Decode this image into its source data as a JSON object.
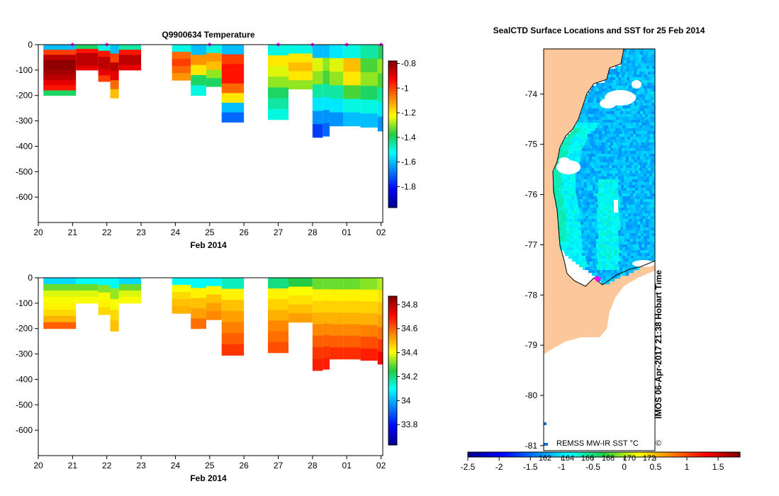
{
  "chart_data": [
    {
      "type": "heatmap",
      "title": "Q9900634  Temperature",
      "xlabel": "Feb 2014",
      "ylabel": "",
      "x_tick_labels": [
        "20",
        "21",
        "22",
        "23",
        "24",
        "25",
        "26",
        "27",
        "28",
        "01",
        "02"
      ],
      "x_ticks_days": [
        0,
        1,
        2,
        3,
        4,
        5,
        6,
        7,
        8,
        9,
        10
      ],
      "xlim_days": [
        0,
        10.05
      ],
      "y_ticks": [
        0,
        -100,
        -200,
        -300,
        -400,
        -500,
        -600
      ],
      "ylim": [
        -700,
        0
      ],
      "colorbar": {
        "ticks": [
          -0.8,
          -1,
          -1.2,
          -1.4,
          -1.6,
          -1.8
        ],
        "range": [
          -1.97,
          -0.78
        ]
      },
      "profile_marker_days": [
        1.0,
        2.0,
        5.0,
        7.0,
        8.0,
        9.0,
        10.0
      ],
      "profiles": [
        {
          "start": 0.15,
          "end": 1.1,
          "depth": 200,
          "values": [
            -1.6,
            -1.0,
            -0.85,
            -0.8,
            -0.8,
            -0.82,
            -0.85,
            -0.9,
            -0.95,
            -1.4
          ]
        },
        {
          "start": 1.1,
          "end": 1.75,
          "depth": 100,
          "values": [
            -1.4,
            -0.95,
            -0.85,
            -0.85,
            -0.85,
            -0.9
          ]
        },
        {
          "start": 1.75,
          "end": 2.1,
          "depth": 145,
          "values": [
            -1.5,
            -0.95,
            -0.85,
            -0.85,
            -0.9,
            -1.0
          ]
        },
        {
          "start": 2.1,
          "end": 2.35,
          "depth": 210,
          "values": [
            -1.6,
            -1.0,
            -0.85,
            -0.9,
            -1.05,
            -1.15
          ]
        },
        {
          "start": 2.35,
          "end": 3.0,
          "depth": 100,
          "values": [
            -1.45,
            -0.95,
            -0.85,
            -0.85,
            -0.9
          ]
        },
        {
          "start": 3.9,
          "end": 4.45,
          "depth": 140,
          "values": [
            -1.5,
            -1.05,
            -1.0,
            -1.05,
            -1.1
          ]
        },
        {
          "start": 4.45,
          "end": 4.9,
          "depth": 200,
          "values": [
            -1.6,
            -1.1,
            -1.2,
            -1.4,
            -1.5
          ]
        },
        {
          "start": 4.9,
          "end": 5.35,
          "depth": 165,
          "values": [
            -1.5,
            -1.1,
            -1.15,
            -1.3,
            -1.4
          ]
        },
        {
          "start": 5.35,
          "end": 6.0,
          "depth": 305,
          "values": [
            -1.6,
            -1.0,
            -0.95,
            -0.95,
            -1.05,
            -1.2,
            -1.6,
            -1.7
          ]
        },
        {
          "start": 6.7,
          "end": 7.3,
          "depth": 295,
          "values": [
            -1.5,
            -1.2,
            -1.25,
            -1.3,
            -1.4,
            -1.45,
            -1.5
          ]
        },
        {
          "start": 7.3,
          "end": 8.0,
          "depth": 175,
          "values": [
            -1.5,
            -1.2,
            -1.15,
            -1.2,
            -1.3
          ]
        },
        {
          "start": 8.0,
          "end": 8.3,
          "depth": 365,
          "values": [
            -1.6,
            -1.25,
            -1.3,
            -1.45,
            -1.55,
            -1.65,
            -1.75
          ]
        },
        {
          "start": 8.3,
          "end": 8.5,
          "depth": 360,
          "values": [
            -1.6,
            -1.3,
            -1.35,
            -1.45,
            -1.55,
            -1.65,
            -1.7
          ]
        },
        {
          "start": 8.5,
          "end": 8.9,
          "depth": 320,
          "values": [
            -1.55,
            -1.25,
            -1.3,
            -1.45,
            -1.55,
            -1.65
          ]
        },
        {
          "start": 8.9,
          "end": 9.4,
          "depth": 320,
          "values": [
            -1.5,
            -1.15,
            -1.2,
            -1.35,
            -1.5,
            -1.6
          ]
        },
        {
          "start": 9.4,
          "end": 9.9,
          "depth": 325,
          "values": [
            -1.45,
            -1.35,
            -1.3,
            -1.4,
            -1.5,
            -1.6
          ]
        },
        {
          "start": 9.9,
          "end": 10.05,
          "depth": 340,
          "values": [
            -1.4,
            -1.3,
            -1.35,
            -1.45,
            -1.55,
            -1.65
          ]
        }
      ]
    },
    {
      "type": "heatmap",
      "title": "",
      "xlabel": "Feb 2014",
      "ylabel": "",
      "x_tick_labels": [
        "20",
        "21",
        "22",
        "23",
        "24",
        "25",
        "26",
        "27",
        "28",
        "01",
        "02"
      ],
      "x_ticks_days": [
        0,
        1,
        2,
        3,
        4,
        5,
        6,
        7,
        8,
        9,
        10
      ],
      "xlim_days": [
        0,
        10.05
      ],
      "y_ticks": [
        0,
        -100,
        -200,
        -300,
        -400,
        -500,
        -600
      ],
      "ylim": [
        -700,
        0
      ],
      "colorbar": {
        "ticks": [
          34.8,
          34.6,
          34.4,
          34.2,
          34,
          33.8
        ],
        "range": [
          33.63,
          34.87
        ]
      },
      "profiles": [
        {
          "start": 0.15,
          "end": 1.1,
          "depth": 200,
          "values": [
            34.05,
            34.3,
            34.38,
            34.4,
            34.42,
            34.45,
            34.5,
            34.6
          ]
        },
        {
          "start": 1.1,
          "end": 1.75,
          "depth": 100,
          "values": [
            34.1,
            34.3,
            34.38,
            34.4
          ]
        },
        {
          "start": 1.75,
          "end": 2.1,
          "depth": 145,
          "values": [
            34.1,
            34.32,
            34.4,
            34.42,
            34.45
          ]
        },
        {
          "start": 2.1,
          "end": 2.35,
          "depth": 210,
          "values": [
            34.1,
            34.33,
            34.4,
            34.45,
            34.48
          ]
        },
        {
          "start": 2.35,
          "end": 3.0,
          "depth": 100,
          "values": [
            34.05,
            34.3,
            34.38,
            34.4
          ]
        },
        {
          "start": 3.9,
          "end": 4.45,
          "depth": 140,
          "values": [
            34.1,
            34.4,
            34.45,
            34.48,
            34.5
          ]
        },
        {
          "start": 4.45,
          "end": 4.9,
          "depth": 200,
          "values": [
            34.1,
            34.42,
            34.48,
            34.52,
            34.58
          ]
        },
        {
          "start": 4.9,
          "end": 5.35,
          "depth": 165,
          "values": [
            34.1,
            34.42,
            34.48,
            34.52,
            34.55
          ]
        },
        {
          "start": 5.35,
          "end": 6.0,
          "depth": 305,
          "values": [
            34.15,
            34.42,
            34.48,
            34.52,
            34.56,
            34.6,
            34.65
          ]
        },
        {
          "start": 6.7,
          "end": 7.3,
          "depth": 295,
          "values": [
            34.2,
            34.42,
            34.46,
            34.5,
            34.55,
            34.58,
            34.62
          ]
        },
        {
          "start": 7.3,
          "end": 8.0,
          "depth": 175,
          "values": [
            34.25,
            34.4,
            34.44,
            34.48,
            34.52
          ]
        },
        {
          "start": 8.0,
          "end": 8.3,
          "depth": 365,
          "values": [
            34.3,
            34.42,
            34.46,
            34.5,
            34.55,
            34.6,
            34.65,
            34.68
          ]
        },
        {
          "start": 8.3,
          "end": 8.5,
          "depth": 360,
          "values": [
            34.3,
            34.42,
            34.46,
            34.5,
            34.55,
            34.6,
            34.65,
            34.68
          ]
        },
        {
          "start": 8.5,
          "end": 8.9,
          "depth": 320,
          "values": [
            34.3,
            34.42,
            34.46,
            34.5,
            34.55,
            34.6,
            34.66
          ]
        },
        {
          "start": 8.9,
          "end": 9.4,
          "depth": 320,
          "values": [
            34.3,
            34.42,
            34.46,
            34.5,
            34.55,
            34.6,
            34.66
          ]
        },
        {
          "start": 9.4,
          "end": 9.9,
          "depth": 325,
          "values": [
            34.32,
            34.42,
            34.46,
            34.5,
            34.56,
            34.62,
            34.68
          ]
        },
        {
          "start": 9.9,
          "end": 10.05,
          "depth": 340,
          "values": [
            34.35,
            34.44,
            34.48,
            34.52,
            34.58,
            34.65,
            34.72
          ]
        }
      ]
    },
    {
      "type": "heatmap",
      "title": "SealCTD Surface Locations and SST for 25 Feb 2014",
      "xlabel": "",
      "ylabel": "",
      "y_ticks": [
        -74,
        -75,
        -76,
        -77,
        -78,
        -79,
        -80,
        -81
      ],
      "ylim": [
        -81.1,
        -73.1
      ],
      "colorbar": {
        "ticks": [
          -2.5,
          -2,
          -1.5,
          -1,
          -0.5,
          0,
          0.5,
          1,
          1.5
        ],
        "range": [
          -2.5,
          1.85
        ]
      },
      "colorbar_extra_ticks": [
        "162",
        "164",
        "166",
        "168",
        "170",
        "172"
      ],
      "map_label": "REMSS MW-IR SST °C",
      "watermark": "IMOS 06-Apr-2017 21:38 Hobart Time",
      "copyright": "©",
      "sst_range": [
        -1.4,
        -0.6
      ]
    }
  ]
}
